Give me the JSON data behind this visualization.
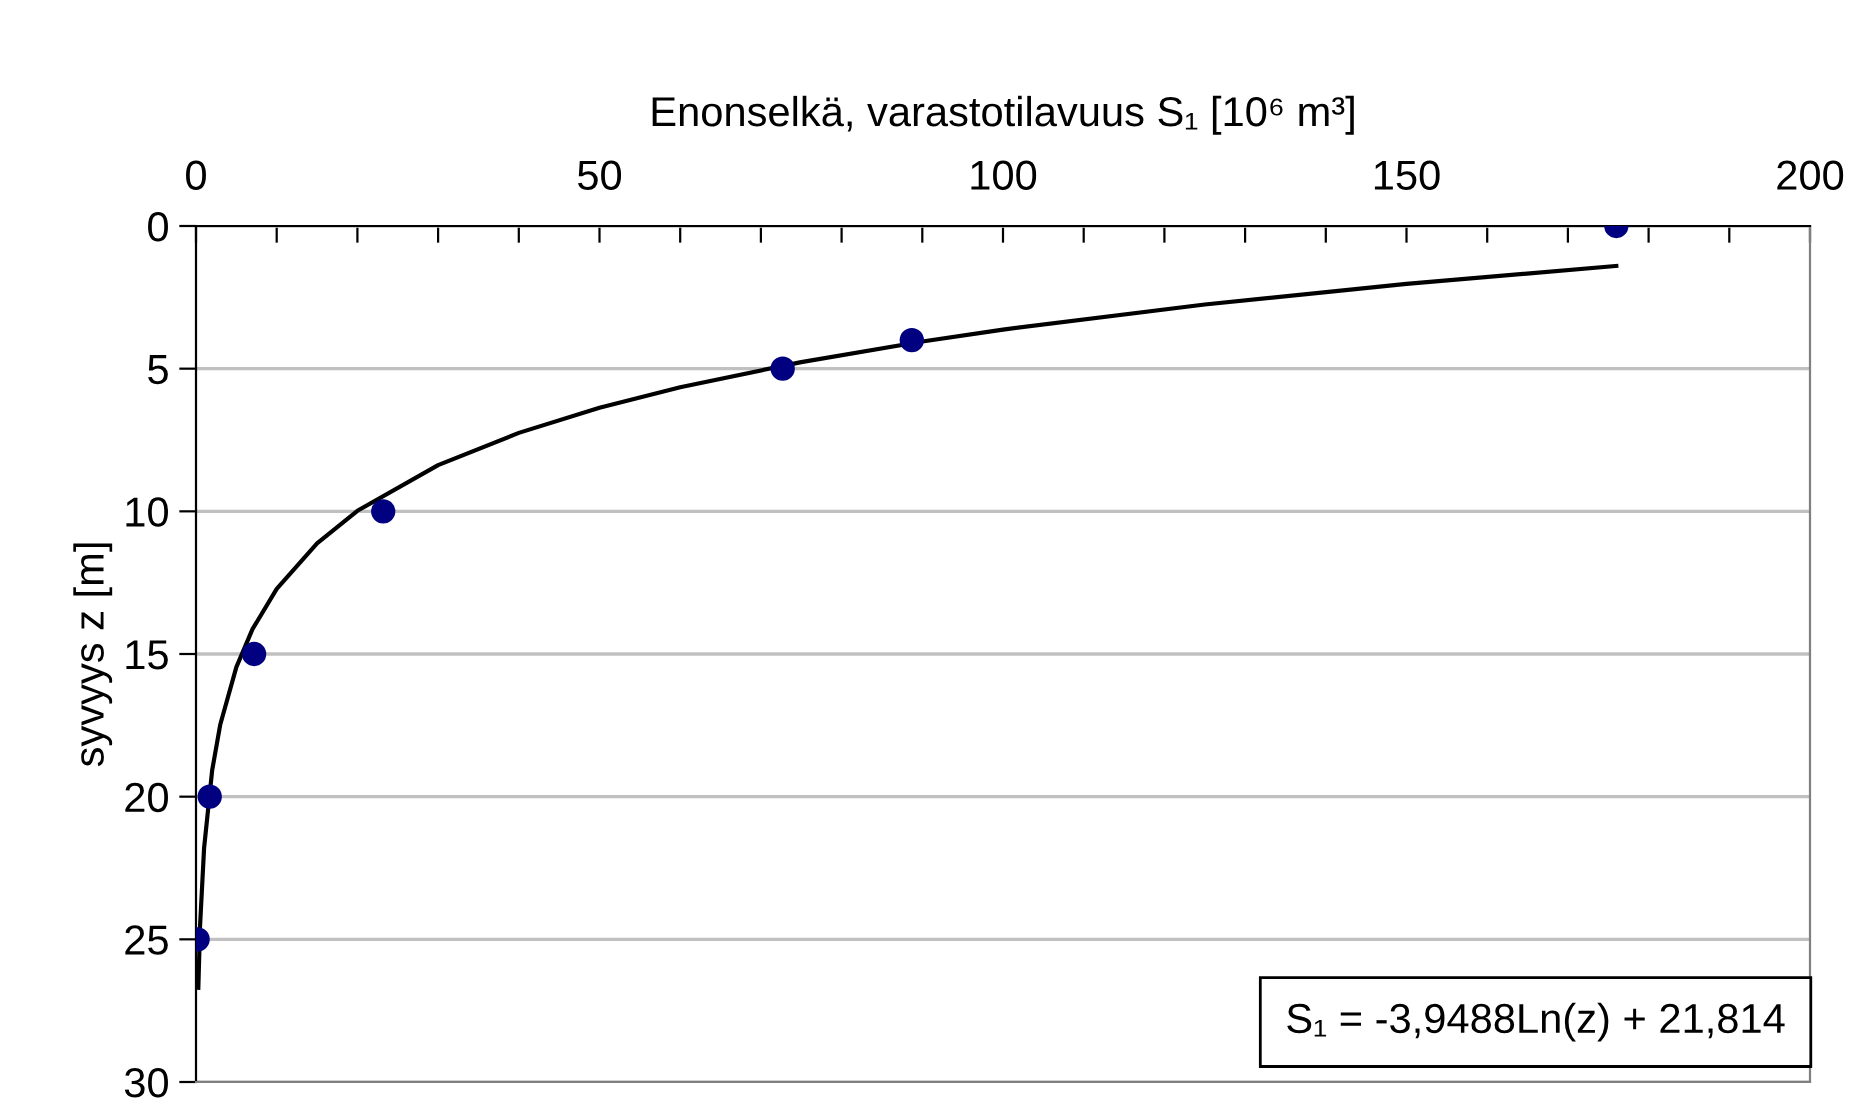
{
  "chart_data": {
    "type": "scatter",
    "xlabel": "Enonselkä, varastotilavuus S₁ [10⁶ m³]",
    "ylabel": "syvyys z [m]",
    "xlim": [
      0,
      200
    ],
    "ylim": [
      30,
      0
    ],
    "xticks": [
      0,
      {
        "value": 10,
        "label": null
      },
      {
        "value": 20,
        "label": null
      },
      {
        "value": 30,
        "label": null
      },
      {
        "value": 40,
        "label": null
      },
      50,
      {
        "value": 60,
        "label": null
      },
      {
        "value": 70,
        "label": null
      },
      {
        "value": 80,
        "label": null
      },
      {
        "value": 90,
        "label": null
      },
      100,
      {
        "value": 110,
        "label": null
      },
      {
        "value": 120,
        "label": null
      },
      {
        "value": 130,
        "label": null
      },
      {
        "value": 140,
        "label": null
      },
      150,
      {
        "value": 160,
        "label": null
      },
      {
        "value": 170,
        "label": null
      },
      {
        "value": 180,
        "label": null
      },
      {
        "value": 190,
        "label": null
      },
      200
    ],
    "yticks": [
      0,
      5,
      10,
      15,
      20,
      25,
      30
    ],
    "grid": "y",
    "legend": false,
    "annotations": [
      "S₁ = -3,9488Ln(z) + 21,814"
    ],
    "series": [
      {
        "color": "#000080",
        "marker": "circle",
        "x": [
          176,
          88.7,
          72.7,
          23.2,
          7.2,
          1.7,
          0.2
        ],
        "values": [
          0,
          4,
          5,
          10,
          15,
          20,
          25
        ]
      },
      {
        "type": "line",
        "color": "#000000",
        "marker": "none",
        "line_style": "solid",
        "x": [
          0.29,
          0.5,
          1,
          2,
          3,
          5,
          7,
          10,
          15,
          20,
          30,
          40,
          50,
          60,
          75,
          90,
          100,
          125,
          150,
          176
        ],
        "values": [
          26.7,
          24.55,
          21.81,
          19.08,
          17.48,
          15.46,
          14.13,
          12.72,
          11.12,
          9.98,
          8.38,
          7.25,
          6.37,
          5.65,
          4.77,
          4.05,
          3.63,
          2.75,
          2.03,
          1.4
        ]
      }
    ]
  }
}
